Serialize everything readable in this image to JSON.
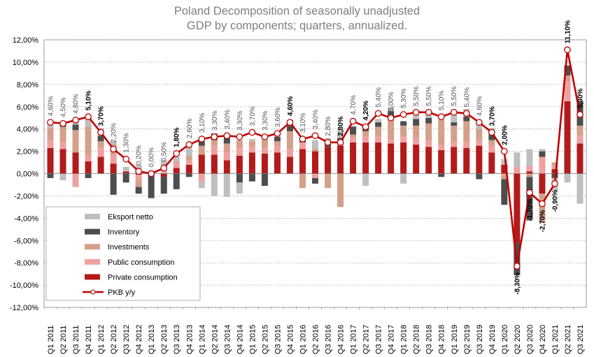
{
  "chart_data": {
    "type": "bar",
    "title_line1": "Poland Decomposition of seasonally unadjusted",
    "title_line2": "GDP by components; quarters, annualized.",
    "ylim": [
      -12,
      12
    ],
    "y_ticks": [
      "12,00%",
      "10,00%",
      "8,00%",
      "6,00%",
      "4,00%",
      "2,00%",
      "0,00%",
      "-2,00%",
      "-4,00%",
      "-6,00%",
      "-8,00%",
      "-10,00%",
      "-12,00%"
    ],
    "categories": [
      "Q1 2011",
      "Q2 2011",
      "Q3 2011",
      "Q4 2011",
      "Q1 2012",
      "Q2 2012",
      "Q3 2012",
      "Q4 2012",
      "Q1 2013",
      "Q2 2013",
      "Q3 2013",
      "Q4 2013",
      "Q1 2014",
      "Q2 2014",
      "Q3 2014",
      "Q4 2014",
      "Q1 2015",
      "Q2 2015",
      "Q3 2015",
      "Q4 2015",
      "Q1 2016",
      "Q2 2016",
      "Q3 2016",
      "Q4 2016",
      "Q1 2017",
      "Q2 2017",
      "Q3 2017",
      "Q4 2017",
      "Q1 2018",
      "Q2 2018",
      "Q3 2018",
      "Q4 2018",
      "Q1 2019",
      "Q2 2019",
      "Q3 2019",
      "Q4 2019",
      "Q1 2020",
      "Q2 2020",
      "Q3 2020",
      "Q4 2020",
      "Q1 2021",
      "Q2 2021",
      "Q3 2021"
    ],
    "stack_order": [
      "Private consumption",
      "Public consumption",
      "Investments",
      "Inventory",
      "Eksport netto"
    ],
    "series": [
      {
        "name": "Private consumption",
        "color": "#b31b1b",
        "values": [
          2.3,
          2.2,
          1.9,
          1.1,
          1.5,
          0.9,
          0.2,
          -0.1,
          0.0,
          -0.3,
          0.5,
          0.8,
          1.7,
          1.7,
          1.2,
          1.6,
          1.9,
          1.8,
          1.9,
          1.5,
          2.2,
          2.0,
          2.4,
          2.5,
          2.8,
          2.8,
          2.8,
          2.7,
          2.8,
          2.6,
          2.4,
          2.1,
          2.4,
          2.3,
          2.5,
          1.9,
          0.8,
          -6.2,
          0.2,
          -1.8,
          0.4,
          6.5,
          2.7
        ]
      },
      {
        "name": "Public consumption",
        "color": "#f0a0a0",
        "values": [
          0.7,
          0.6,
          -1.2,
          0.6,
          0.8,
          0.8,
          0.0,
          -0.5,
          -0.1,
          0.2,
          0.5,
          0.4,
          -0.7,
          0.8,
          0.8,
          0.7,
          0.5,
          0.5,
          0.6,
          0.7,
          0.6,
          -0.4,
          0.0,
          0.1,
          0.4,
          0.5,
          0.5,
          0.4,
          0.5,
          0.6,
          0.6,
          0.5,
          0.5,
          0.5,
          0.5,
          0.6,
          -0.2,
          0.6,
          0.5,
          1.5,
          0.3,
          1.8,
          0.7
        ]
      },
      {
        "name": "Investments",
        "color": "#d4a08a",
        "values": [
          1.1,
          1.4,
          2.0,
          2.5,
          0.6,
          0.9,
          0.0,
          -0.6,
          0.0,
          0.0,
          0.1,
          0.4,
          0.8,
          0.5,
          0.7,
          0.7,
          0.5,
          0.7,
          0.4,
          1.6,
          -1.3,
          0.2,
          -1.3,
          -3.0,
          0.3,
          0.5,
          0.9,
          1.9,
          1.0,
          1.1,
          1.5,
          2.2,
          1.4,
          1.9,
          1.0,
          0.5,
          -0.3,
          0.0,
          -0.3,
          -2.6,
          0.3,
          0.5,
          0.9
        ]
      },
      {
        "name": "Inventory",
        "color": "#4d4d4d",
        "values": [
          -0.4,
          0.3,
          0.5,
          -0.4,
          0.5,
          -1.9,
          -0.8,
          -0.6,
          -2.1,
          -1.5,
          -1.4,
          -0.3,
          0.4,
          0.6,
          0.6,
          -0.8,
          -0.7,
          -1.1,
          0.4,
          0.5,
          0.2,
          -0.5,
          0.4,
          0.6,
          0.7,
          0.6,
          0.4,
          0.6,
          0.4,
          0.6,
          0.5,
          -0.3,
          0.3,
          0.4,
          -0.5,
          0.5,
          -2.3,
          -2.9,
          -3.9,
          0.5,
          -0.4,
          0.9,
          2.2
        ]
      },
      {
        "name": "Eksport netto",
        "color": "#bfbfbf",
        "values": [
          0.4,
          -0.6,
          0.5,
          0.8,
          0.7,
          0.3,
          0.4,
          0.8,
          0.3,
          1.0,
          0.4,
          0.8,
          -0.6,
          -2.0,
          -2.1,
          -1.0,
          0.2,
          0.2,
          0.2,
          0.5,
          0.3,
          0.8,
          0.4,
          0.8,
          0.1,
          -1.1,
          0.3,
          0.4,
          -0.9,
          0.6,
          0.6,
          0.1,
          0.8,
          0.7,
          0.5,
          0.6,
          0.5,
          1.3,
          1.5,
          0.2,
          -1.2,
          -0.8,
          -2.7
        ]
      }
    ],
    "line": {
      "name": "PKB y/y",
      "color": "#c00000",
      "values": [
        4.6,
        4.5,
        4.8,
        5.1,
        3.7,
        2.2,
        1.3,
        0.2,
        0.0,
        0.5,
        1.8,
        2.6,
        3.1,
        3.3,
        3.4,
        3.3,
        3.7,
        3.3,
        3.6,
        4.6,
        3.1,
        3.4,
        2.8,
        2.8,
        4.7,
        4.2,
        5.4,
        5.0,
        5.3,
        5.5,
        5.5,
        5.1,
        5.5,
        5.4,
        4.6,
        3.7,
        2.0,
        -8.3,
        -1.7,
        -2.7,
        -0.9,
        11.1,
        5.3
      ],
      "labels": [
        "4,60%",
        "4,50%",
        "4,80%",
        "5,10%",
        "3,70%",
        "2,20%",
        "1,30%",
        "0,20%",
        "0,00%",
        "0,50%",
        "1,80%",
        "2,60%",
        "3,10%",
        "3,30%",
        "3,40%",
        "3,30%",
        "3,70%",
        "3,30%",
        "3,60%",
        "4,60%",
        "3,10%",
        "3,40%",
        "2,80%",
        "2,80%",
        "4,70%",
        "4,20%",
        "5,40%",
        "5,00%",
        "5,30%",
        "5,50%",
        "5,50%",
        "5,10%",
        "5,50%",
        "5,40%",
        "4,60%",
        "3,70%",
        "2,00%",
        "-8,30%",
        "-1,70%",
        "-2,70%",
        "-0,90%",
        "11,10%",
        "5,30%"
      ],
      "bold_labels": [
        3,
        4,
        10,
        19,
        23,
        25,
        35,
        36,
        37,
        38,
        39,
        40,
        41,
        42
      ]
    },
    "legend": {
      "placement": "bottom-left",
      "items": [
        {
          "label": "Eksport netto",
          "kind": "bar",
          "color": "#bfbfbf"
        },
        {
          "label": "Inventory",
          "kind": "bar",
          "color": "#4d4d4d"
        },
        {
          "label": "Investments",
          "kind": "bar",
          "color": "#d4a08a"
        },
        {
          "label": "Public consumption",
          "kind": "bar",
          "color": "#f0a0a0"
        },
        {
          "label": "Private consumption",
          "kind": "bar",
          "color": "#b31b1b"
        },
        {
          "label": "PKB y/y",
          "kind": "line",
          "color": "#c00000"
        }
      ]
    },
    "grid": true
  }
}
